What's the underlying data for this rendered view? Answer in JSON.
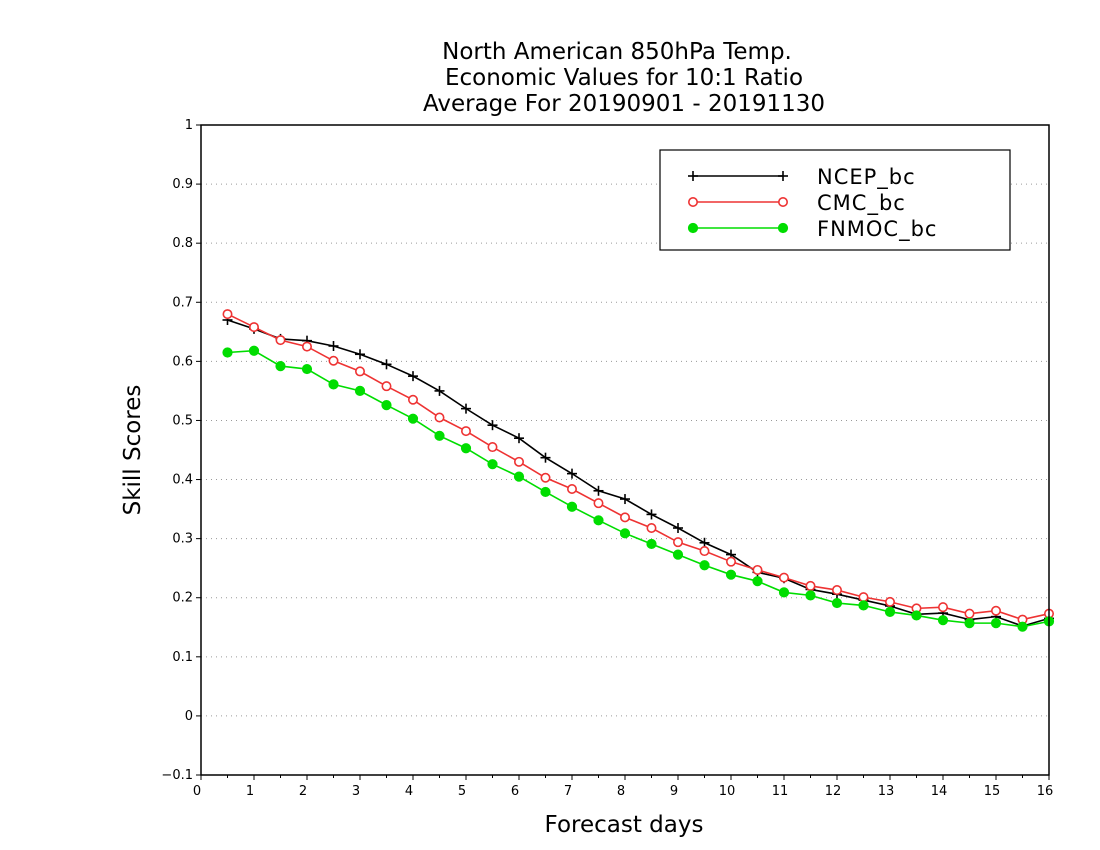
{
  "chart_data": {
    "type": "line",
    "title": [
      "North American 850hPa Temp.",
      "Economic Values for 10:1 Ratio",
      "Average For 20190901 - 20191130"
    ],
    "xlabel": "Forecast days",
    "ylabel": "Skill Scores",
    "xlim": [
      0,
      16
    ],
    "ylim": [
      -0.1,
      1
    ],
    "xticks": [
      "0",
      "1",
      "2",
      "3",
      "4",
      "5",
      "6",
      "7",
      "8",
      "9",
      "10",
      "11",
      "12",
      "13",
      "14",
      "15",
      "16"
    ],
    "yticks": [
      "−0.1",
      "0",
      "0.1",
      "0.2",
      "0.3",
      "0.4",
      "0.5",
      "0.6",
      "0.7",
      "0.8",
      "0.9",
      "1"
    ],
    "grid": "horizontal-dotted",
    "legend_position": "top-right",
    "x": [
      0.5,
      1,
      1.5,
      2,
      2.5,
      3,
      3.5,
      4,
      4.5,
      5,
      5.5,
      6,
      6.5,
      7,
      7.5,
      8,
      8.5,
      9,
      9.5,
      10,
      10.5,
      11,
      11.5,
      12,
      12.5,
      13,
      13.5,
      14,
      14.5,
      15,
      15.5,
      16
    ],
    "series": [
      {
        "name": "NCEP_bc",
        "color": "#000000",
        "marker": "plus",
        "values": [
          0.67,
          0.655,
          0.638,
          0.635,
          0.626,
          0.612,
          0.595,
          0.575,
          0.55,
          0.52,
          0.492,
          0.47,
          0.437,
          0.41,
          0.381,
          0.367,
          0.341,
          0.318,
          0.293,
          0.273,
          0.243,
          0.233,
          0.214,
          0.206,
          0.196,
          0.186,
          0.172,
          0.174,
          0.163,
          0.168,
          0.152,
          0.165
        ]
      },
      {
        "name": "CMC_bc",
        "color": "#ee3333",
        "marker": "open-circle",
        "values": [
          0.68,
          0.658,
          0.636,
          0.625,
          0.601,
          0.583,
          0.558,
          0.535,
          0.505,
          0.482,
          0.455,
          0.43,
          0.403,
          0.384,
          0.36,
          0.336,
          0.318,
          0.294,
          0.279,
          0.261,
          0.247,
          0.234,
          0.22,
          0.213,
          0.201,
          0.193,
          0.182,
          0.184,
          0.173,
          0.178,
          0.163,
          0.173
        ]
      },
      {
        "name": "FNMOC_bc",
        "color": "#00dd00",
        "marker": "filled-circle",
        "values": [
          0.615,
          0.618,
          0.592,
          0.587,
          0.561,
          0.55,
          0.526,
          0.503,
          0.474,
          0.453,
          0.426,
          0.405,
          0.379,
          0.354,
          0.331,
          0.309,
          0.291,
          0.273,
          0.255,
          0.239,
          0.228,
          0.209,
          0.204,
          0.191,
          0.187,
          0.176,
          0.17,
          0.162,
          0.157,
          0.157,
          0.151,
          0.16
        ]
      }
    ]
  }
}
